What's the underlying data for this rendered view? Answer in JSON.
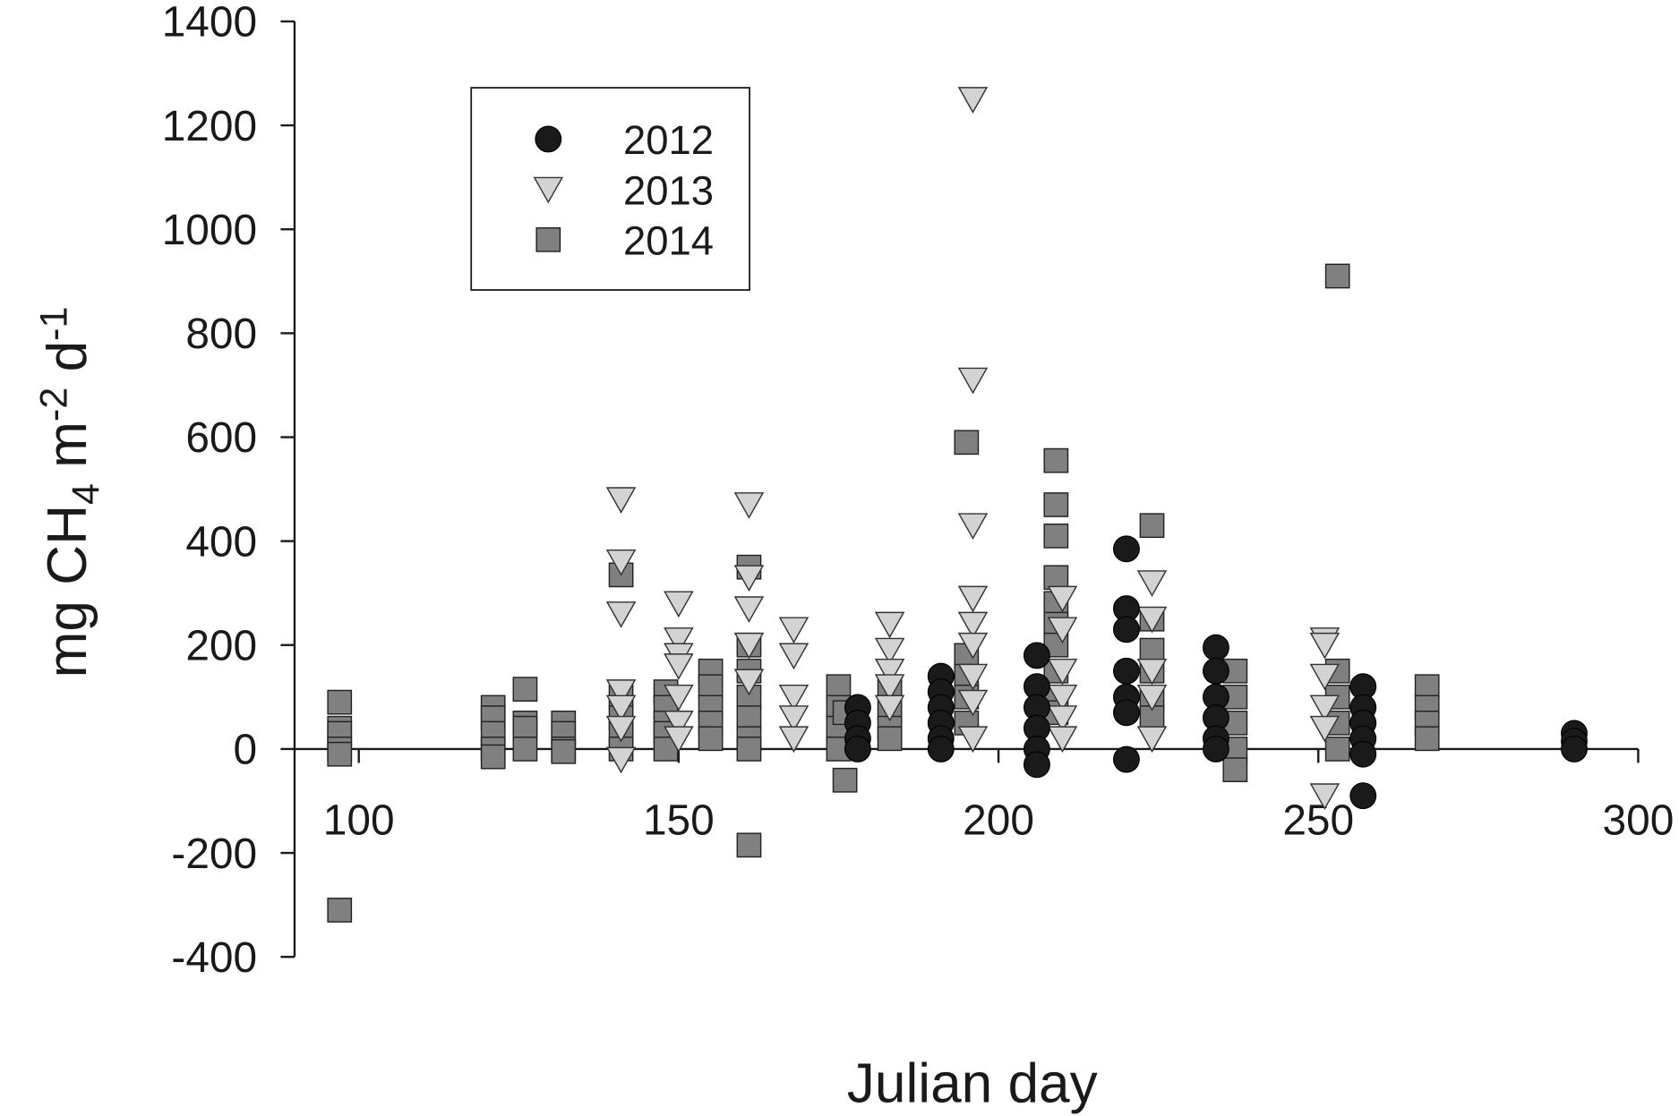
{
  "chart_data": {
    "type": "scatter",
    "xlabel": "Julian day",
    "ylabel": {
      "main": "mg CH",
      "sub": "4",
      "m": " m",
      "exp1": "-2",
      "d": " d",
      "exp2": "-1"
    },
    "xlim": [
      90,
      300
    ],
    "ylim": [
      -400,
      1400
    ],
    "xticks": [
      100,
      150,
      200,
      250,
      300
    ],
    "yticks": [
      -400,
      -200,
      0,
      200,
      400,
      600,
      800,
      1000,
      1200,
      1400
    ],
    "grid": false,
    "legend_position": "top-left",
    "series": [
      {
        "name": "2014",
        "marker": "square",
        "color": "#808080",
        "points": [
          [
            97,
            90
          ],
          [
            97,
            40
          ],
          [
            97,
            30
          ],
          [
            97,
            0
          ],
          [
            97,
            -10
          ],
          [
            97,
            -310
          ],
          [
            121,
            80
          ],
          [
            121,
            60
          ],
          [
            121,
            30
          ],
          [
            121,
            0
          ],
          [
            121,
            -15
          ],
          [
            126,
            115
          ],
          [
            126,
            50
          ],
          [
            126,
            40
          ],
          [
            126,
            0
          ],
          [
            132,
            50
          ],
          [
            132,
            30
          ],
          [
            132,
            0
          ],
          [
            132,
            -5
          ],
          [
            141,
            335
          ],
          [
            141,
            100
          ],
          [
            141,
            60
          ],
          [
            141,
            30
          ],
          [
            141,
            0
          ],
          [
            148,
            110
          ],
          [
            148,
            80
          ],
          [
            148,
            50
          ],
          [
            148,
            30
          ],
          [
            148,
            0
          ],
          [
            155,
            150
          ],
          [
            155,
            120
          ],
          [
            155,
            80
          ],
          [
            155,
            50
          ],
          [
            155,
            20
          ],
          [
            161,
            350
          ],
          [
            161,
            200
          ],
          [
            161,
            150
          ],
          [
            161,
            100
          ],
          [
            161,
            60
          ],
          [
            161,
            20
          ],
          [
            161,
            0
          ],
          [
            161,
            -185
          ],
          [
            175,
            120
          ],
          [
            175,
            80
          ],
          [
            175,
            40
          ],
          [
            175,
            0
          ],
          [
            176,
            70
          ],
          [
            176,
            -60
          ],
          [
            183,
            120
          ],
          [
            183,
            80
          ],
          [
            183,
            40
          ],
          [
            183,
            20
          ],
          [
            195,
            590
          ],
          [
            195,
            180
          ],
          [
            195,
            140
          ],
          [
            195,
            100
          ],
          [
            195,
            50
          ],
          [
            209,
            555
          ],
          [
            209,
            470
          ],
          [
            209,
            410
          ],
          [
            209,
            330
          ],
          [
            209,
            280
          ],
          [
            209,
            240
          ],
          [
            209,
            200
          ],
          [
            209,
            150
          ],
          [
            209,
            100
          ],
          [
            209,
            70
          ],
          [
            224,
            430
          ],
          [
            224,
            250
          ],
          [
            224,
            190
          ],
          [
            224,
            150
          ],
          [
            224,
            100
          ],
          [
            224,
            60
          ],
          [
            237,
            150
          ],
          [
            237,
            100
          ],
          [
            237,
            50
          ],
          [
            237,
            0
          ],
          [
            237,
            -40
          ],
          [
            253,
            910
          ],
          [
            253,
            150
          ],
          [
            253,
            100
          ],
          [
            253,
            50
          ],
          [
            253,
            0
          ],
          [
            267,
            120
          ],
          [
            267,
            80
          ],
          [
            267,
            50
          ],
          [
            267,
            20
          ]
        ]
      },
      {
        "name": "2013",
        "marker": "triangle-down",
        "color": "#d3d3d3",
        "points": [
          [
            141,
            480
          ],
          [
            141,
            360
          ],
          [
            141,
            260
          ],
          [
            141,
            110
          ],
          [
            141,
            80
          ],
          [
            141,
            40
          ],
          [
            141,
            -20
          ],
          [
            150,
            280
          ],
          [
            150,
            210
          ],
          [
            150,
            180
          ],
          [
            150,
            160
          ],
          [
            150,
            100
          ],
          [
            150,
            50
          ],
          [
            150,
            20
          ],
          [
            161,
            470
          ],
          [
            161,
            330
          ],
          [
            161,
            270
          ],
          [
            161,
            200
          ],
          [
            161,
            130
          ],
          [
            168,
            230
          ],
          [
            168,
            180
          ],
          [
            168,
            100
          ],
          [
            168,
            60
          ],
          [
            168,
            20
          ],
          [
            183,
            240
          ],
          [
            183,
            190
          ],
          [
            183,
            150
          ],
          [
            183,
            120
          ],
          [
            183,
            80
          ],
          [
            196,
            1250
          ],
          [
            196,
            710
          ],
          [
            196,
            430
          ],
          [
            196,
            290
          ],
          [
            196,
            240
          ],
          [
            196,
            200
          ],
          [
            196,
            140
          ],
          [
            196,
            90
          ],
          [
            196,
            20
          ],
          [
            210,
            290
          ],
          [
            210,
            230
          ],
          [
            210,
            150
          ],
          [
            210,
            100
          ],
          [
            210,
            60
          ],
          [
            210,
            20
          ],
          [
            224,
            320
          ],
          [
            224,
            250
          ],
          [
            224,
            150
          ],
          [
            224,
            100
          ],
          [
            224,
            20
          ],
          [
            251,
            210
          ],
          [
            251,
            200
          ],
          [
            251,
            140
          ],
          [
            251,
            80
          ],
          [
            251,
            40
          ],
          [
            251,
            -90
          ]
        ]
      },
      {
        "name": "2012",
        "marker": "circle",
        "color": "#1a1a1a",
        "points": [
          [
            178,
            80
          ],
          [
            178,
            50
          ],
          [
            178,
            20
          ],
          [
            178,
            0
          ],
          [
            191,
            140
          ],
          [
            191,
            110
          ],
          [
            191,
            80
          ],
          [
            191,
            50
          ],
          [
            191,
            20
          ],
          [
            191,
            0
          ],
          [
            206,
            180
          ],
          [
            206,
            120
          ],
          [
            206,
            80
          ],
          [
            206,
            40
          ],
          [
            206,
            0
          ],
          [
            206,
            -30
          ],
          [
            220,
            385
          ],
          [
            220,
            270
          ],
          [
            220,
            230
          ],
          [
            220,
            150
          ],
          [
            220,
            100
          ],
          [
            220,
            70
          ],
          [
            220,
            -20
          ],
          [
            234,
            195
          ],
          [
            234,
            150
          ],
          [
            234,
            100
          ],
          [
            234,
            60
          ],
          [
            234,
            20
          ],
          [
            234,
            0
          ],
          [
            257,
            120
          ],
          [
            257,
            80
          ],
          [
            257,
            50
          ],
          [
            257,
            20
          ],
          [
            257,
            -10
          ],
          [
            257,
            -90
          ],
          [
            290,
            30
          ],
          [
            290,
            15
          ],
          [
            290,
            0
          ]
        ]
      }
    ],
    "legend": [
      {
        "label": "2012",
        "marker": "circle",
        "color": "#1a1a1a"
      },
      {
        "label": "2013",
        "marker": "triangle-down",
        "color": "#d3d3d3"
      },
      {
        "label": "2014",
        "marker": "square",
        "color": "#808080"
      }
    ]
  }
}
